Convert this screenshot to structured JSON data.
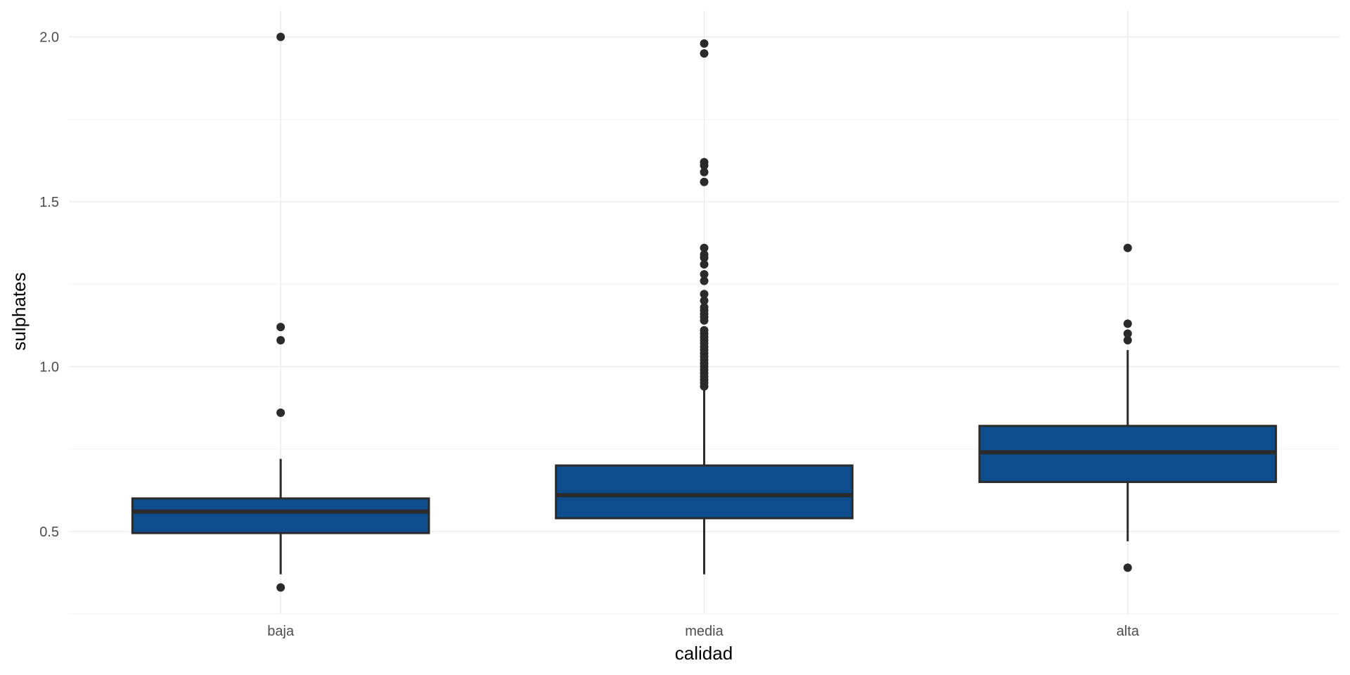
{
  "chart_data": {
    "type": "boxplot",
    "title": "",
    "xlabel": "calidad",
    "ylabel": "sulphates",
    "ylim": [
      0.25,
      2.08
    ],
    "y_ticks": [
      0.5,
      1.0,
      1.5,
      2.0
    ],
    "y_tick_labels": [
      "0.5",
      "1.0",
      "1.5",
      "2.0"
    ],
    "y_minor_ticks": [
      0.25,
      0.75,
      1.25,
      1.75
    ],
    "grid": true,
    "fill_color": "#0d4d8c",
    "line_color": "#2b2b2b",
    "categories": [
      "baja",
      "media",
      "alta"
    ],
    "boxes": [
      {
        "category": "baja",
        "lower_whisker": 0.37,
        "q1": 0.495,
        "median": 0.56,
        "q3": 0.6,
        "upper_whisker": 0.72,
        "outliers": [
          0.33,
          0.86,
          1.08,
          1.12,
          2.0
        ]
      },
      {
        "category": "media",
        "lower_whisker": 0.37,
        "q1": 0.54,
        "median": 0.61,
        "q3": 0.7,
        "upper_whisker": 0.93,
        "outliers": [
          0.94,
          0.95,
          0.96,
          0.97,
          0.98,
          0.99,
          1.0,
          1.01,
          1.02,
          1.03,
          1.04,
          1.05,
          1.06,
          1.07,
          1.08,
          1.09,
          1.1,
          1.11,
          1.14,
          1.15,
          1.16,
          1.17,
          1.18,
          1.2,
          1.22,
          1.26,
          1.28,
          1.31,
          1.33,
          1.34,
          1.36,
          1.56,
          1.59,
          1.61,
          1.62,
          1.95,
          1.98
        ]
      },
      {
        "category": "alta",
        "lower_whisker": 0.47,
        "q1": 0.65,
        "median": 0.74,
        "q3": 0.82,
        "upper_whisker": 1.05,
        "outliers": [
          0.39,
          1.08,
          1.1,
          1.13,
          1.36
        ]
      }
    ]
  }
}
